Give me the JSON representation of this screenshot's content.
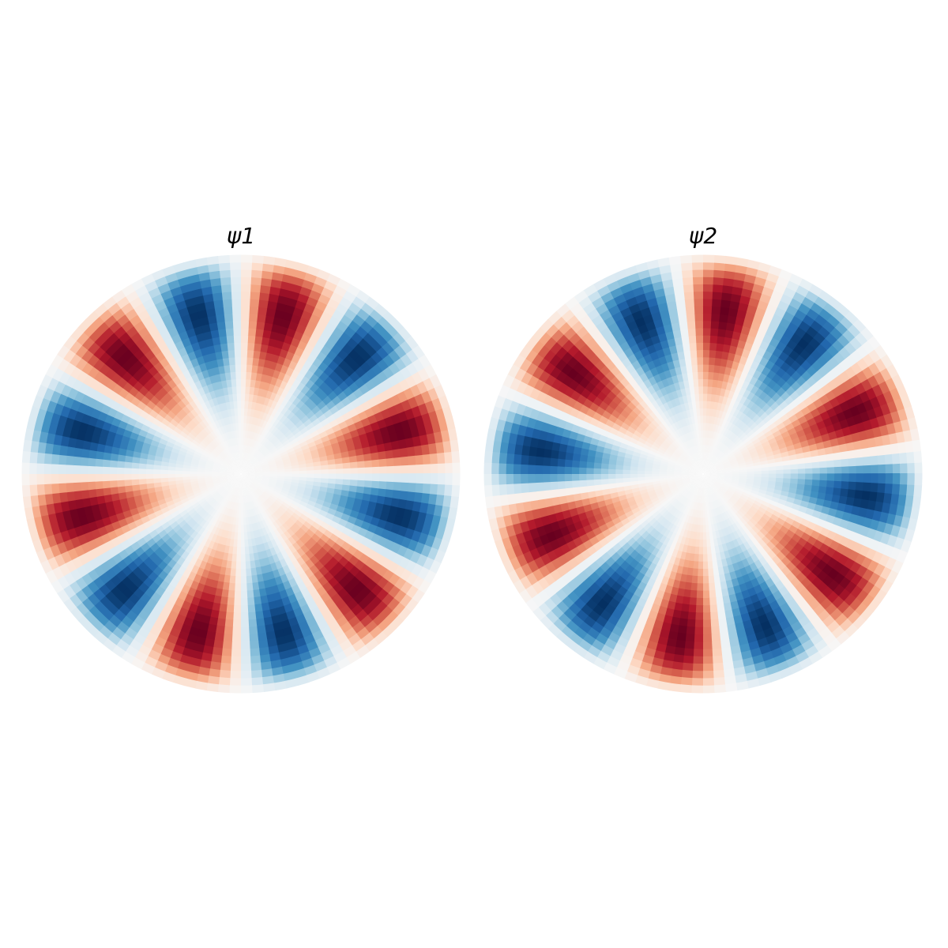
{
  "chart_data": [
    {
      "type": "polar-heatmap",
      "title": "ψ1",
      "angular_order": 6,
      "phase_deg": 15,
      "colormap": [
        "#053061",
        "#2166ac",
        "#4393c3",
        "#92c5de",
        "#d1e5f0",
        "#f7f7f7",
        "#fddbc7",
        "#f4a582",
        "#d6604d",
        "#b2182b",
        "#67001f"
      ]
    },
    {
      "type": "polar-heatmap",
      "title": "ψ2",
      "angular_order": 6,
      "phase_deg": 22,
      "colormap": [
        "#053061",
        "#2166ac",
        "#4393c3",
        "#92c5de",
        "#d1e5f0",
        "#f7f7f7",
        "#fddbc7",
        "#f4a582",
        "#d6604d",
        "#b2182b",
        "#67001f"
      ]
    }
  ]
}
